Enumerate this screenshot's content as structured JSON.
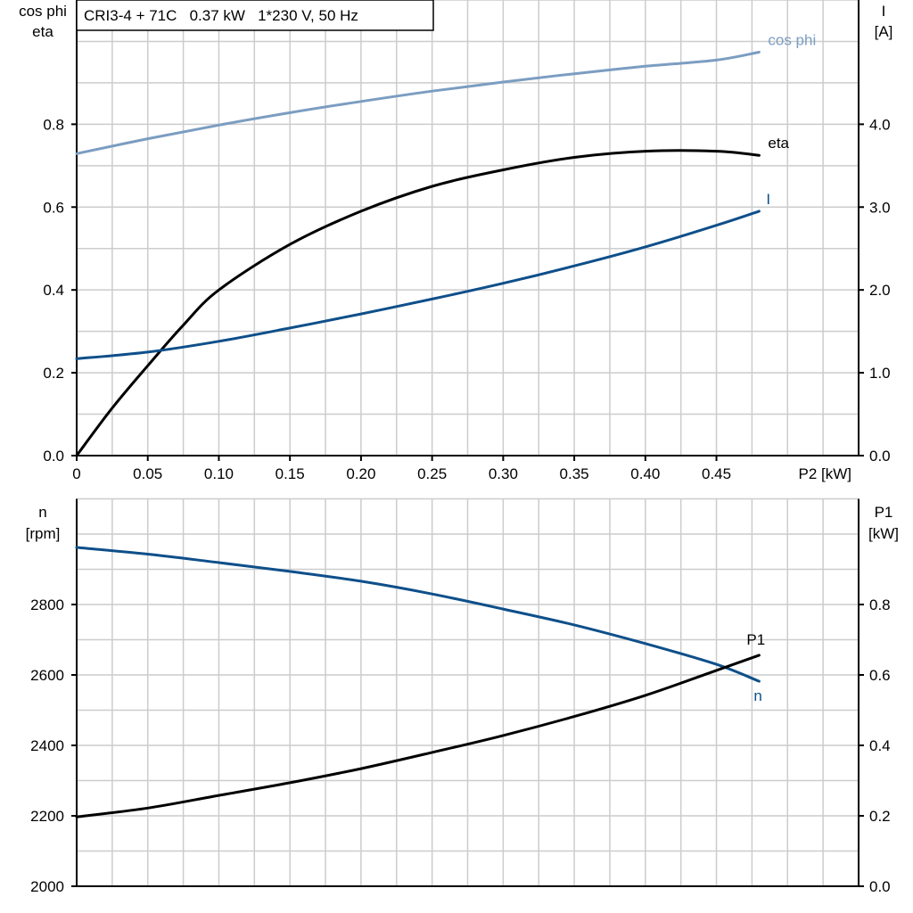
{
  "chart_data": [
    {
      "type": "line",
      "title": "CRI3-4 + 71C   0.37 kW   1*230 V, 50 Hz",
      "xlabel": "P2 [kW]",
      "ylabel_left": [
        "cos phi",
        "eta"
      ],
      "ylabel_right": [
        "I",
        "[A]"
      ],
      "xlim": [
        0,
        0.55
      ],
      "ylim_left": [
        0,
        1.1
      ],
      "ylim_right": [
        0,
        5.5
      ],
      "grid": true,
      "x_ticks": [
        "0",
        "0.05",
        "0.10",
        "0.15",
        "0.20",
        "0.25",
        "0.30",
        "0.35",
        "0.40",
        "0.45"
      ],
      "y_ticks_left": [
        "0.0",
        "0.2",
        "0.4",
        "0.6",
        "0.8"
      ],
      "y_ticks_right": [
        "0.0",
        "1.0",
        "2.0",
        "3.0",
        "4.0"
      ],
      "series": [
        {
          "name": "cos phi",
          "axis": "left",
          "color": "#7b9dc1",
          "x": [
            0,
            0.05,
            0.1,
            0.15,
            0.2,
            0.25,
            0.3,
            0.35,
            0.4,
            0.45,
            0.48
          ],
          "y": [
            0.729,
            0.765,
            0.798,
            0.828,
            0.855,
            0.88,
            0.902,
            0.922,
            0.94,
            0.955,
            0.974
          ]
        },
        {
          "name": "eta",
          "axis": "left",
          "color": "#000000",
          "x": [
            0,
            0.025,
            0.05,
            0.075,
            0.1,
            0.15,
            0.2,
            0.25,
            0.3,
            0.35,
            0.4,
            0.45,
            0.48
          ],
          "y": [
            0,
            0.115,
            0.217,
            0.315,
            0.4,
            0.51,
            0.59,
            0.65,
            0.69,
            0.72,
            0.735,
            0.735,
            0.725
          ]
        },
        {
          "name": "I",
          "axis": "right",
          "color": "#0e4f8a",
          "x": [
            0,
            0.05,
            0.1,
            0.15,
            0.2,
            0.25,
            0.3,
            0.35,
            0.4,
            0.45,
            0.48
          ],
          "y": [
            1.17,
            1.25,
            1.38,
            1.54,
            1.71,
            1.89,
            2.08,
            2.29,
            2.52,
            2.78,
            2.95
          ]
        }
      ]
    },
    {
      "type": "line",
      "ylabel_left": [
        "n",
        "[rpm]"
      ],
      "ylabel_right": [
        "P1",
        "[kW]"
      ],
      "xlim": [
        0,
        0.55
      ],
      "ylim_left": [
        2000,
        3100
      ],
      "ylim_right": [
        0,
        1.1
      ],
      "grid": true,
      "y_ticks_left": [
        "2000",
        "2200",
        "2400",
        "2600",
        "2800"
      ],
      "y_ticks_right": [
        "0.0",
        "0.2",
        "0.4",
        "0.6",
        "0.8"
      ],
      "series": [
        {
          "name": "n",
          "axis": "left",
          "color": "#0e4f8a",
          "x": [
            0,
            0.05,
            0.1,
            0.15,
            0.2,
            0.25,
            0.3,
            0.35,
            0.4,
            0.45,
            0.48
          ],
          "y": [
            2962,
            2943,
            2919,
            2894,
            2866,
            2830,
            2787,
            2742,
            2689,
            2630,
            2582
          ]
        },
        {
          "name": "P1",
          "axis": "right",
          "color": "#000000",
          "x": [
            0,
            0.05,
            0.1,
            0.15,
            0.2,
            0.25,
            0.3,
            0.35,
            0.4,
            0.45,
            0.48
          ],
          "y": [
            0.197,
            0.222,
            0.258,
            0.294,
            0.334,
            0.38,
            0.428,
            0.482,
            0.542,
            0.613,
            0.656
          ]
        }
      ]
    }
  ]
}
